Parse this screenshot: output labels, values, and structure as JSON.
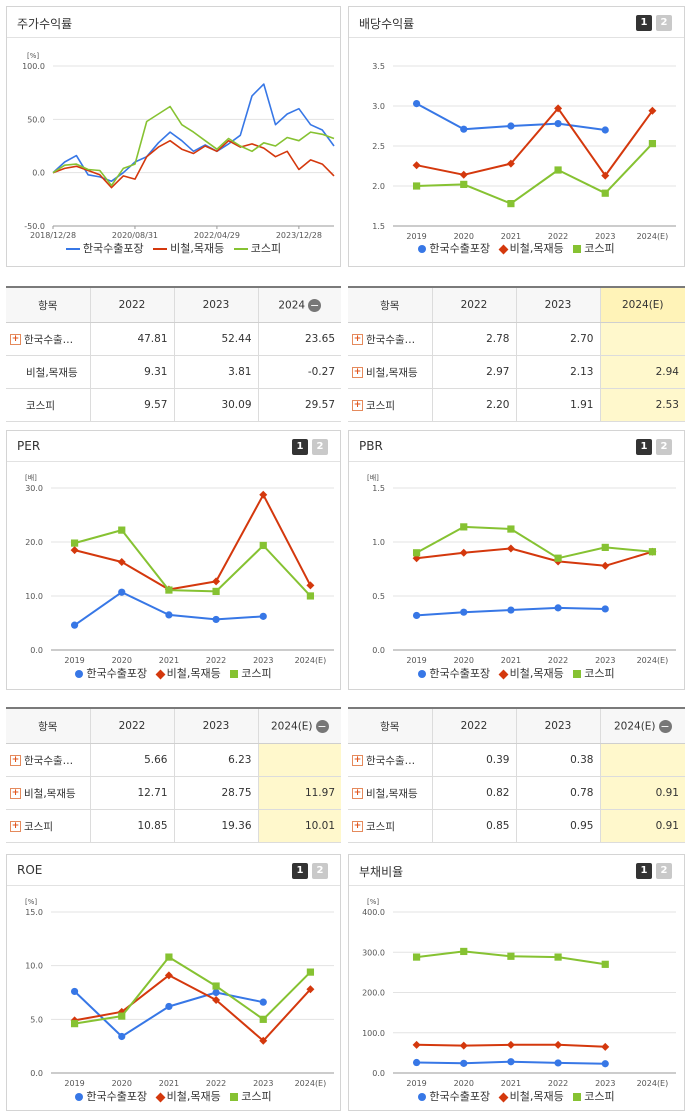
{
  "colors": {
    "s1": "#3777e6",
    "s2": "#d4380d",
    "s3": "#86c232"
  },
  "charts": {
    "stock": {
      "title": "주가수익률",
      "unit": "[%]",
      "legend": [
        "한국수출포장",
        "비철,목재등",
        "코스피"
      ],
      "ylim": [
        -50,
        100
      ],
      "yticks": [
        "100.0",
        "50.0",
        "0.0",
        "-50.0"
      ],
      "xticks": [
        "2018/12/28",
        "2020/08/31",
        "2022/04/29",
        "2023/12/28"
      ]
    },
    "div": {
      "title": "배당수익률",
      "page": [
        "1",
        "2"
      ],
      "unit": "",
      "legend": [
        "한국수출포장",
        "비철,목재등",
        "코스피"
      ],
      "yticks": [
        "3.5",
        "3.0",
        "2.5",
        "2.0",
        "1.5"
      ],
      "xticks": [
        "2019",
        "2020",
        "2021",
        "2022",
        "2023",
        "2024(E)"
      ]
    },
    "per": {
      "title": "PER",
      "page": [
        "1",
        "2"
      ],
      "unit": "[배]",
      "legend": [
        "한국수출포장",
        "비철,목재등",
        "코스피"
      ],
      "yticks": [
        "30.0",
        "20.0",
        "10.0",
        "0.0"
      ],
      "xticks": [
        "2019",
        "2020",
        "2021",
        "2022",
        "2023",
        "2024(E)"
      ]
    },
    "pbr": {
      "title": "PBR",
      "page": [
        "1",
        "2"
      ],
      "unit": "[배]",
      "legend": [
        "한국수출포장",
        "비철,목재등",
        "코스피"
      ],
      "yticks": [
        "1.5",
        "1.0",
        "0.5",
        "0.0"
      ],
      "xticks": [
        "2019",
        "2020",
        "2021",
        "2022",
        "2023",
        "2024(E)"
      ]
    },
    "roe": {
      "title": "ROE",
      "page": [
        "1",
        "2"
      ],
      "unit": "[%]",
      "legend": [
        "한국수출포장",
        "비철,목재등",
        "코스피"
      ],
      "yticks": [
        "15.0",
        "10.0",
        "5.0",
        "0.0"
      ],
      "xticks": [
        "2019",
        "2020",
        "2021",
        "2022",
        "2023",
        "2024(E)"
      ]
    },
    "debt": {
      "title": "부채비율",
      "page": [
        "1",
        "2"
      ],
      "unit": "[%]",
      "legend": [
        "한국수출포장",
        "비철,목재등",
        "코스피"
      ],
      "yticks": [
        "400.0",
        "300.0",
        "200.0",
        "100.0",
        "0.0"
      ],
      "xticks": [
        "2019",
        "2020",
        "2021",
        "2022",
        "2023",
        "2024(E)"
      ]
    }
  },
  "chart_data": [
    {
      "type": "line",
      "title": "주가수익률",
      "ylabel": "[%]",
      "ylim": [
        -50,
        100
      ],
      "x": [
        "2018/12/28",
        "2019/03",
        "2019/06",
        "2019/09",
        "2019/12",
        "2020/03",
        "2020/06",
        "2020/08/31",
        "2020/11",
        "2021/02",
        "2021/05",
        "2021/08",
        "2021/11",
        "2022/02",
        "2022/04/29",
        "2022/07",
        "2022/10",
        "2023/01",
        "2023/04",
        "2023/07",
        "2023/10",
        "2023/12/28",
        "2024/03",
        "2024/06",
        "2024/08"
      ],
      "series": [
        {
          "name": "한국수출포장",
          "values": [
            0,
            10,
            16,
            -2,
            -4,
            -8,
            0,
            10,
            15,
            28,
            38,
            30,
            20,
            26,
            20,
            27,
            35,
            72,
            83,
            45,
            55,
            60,
            45,
            40,
            25
          ]
        },
        {
          "name": "비철,목재등",
          "values": [
            0,
            4,
            6,
            2,
            -2,
            -14,
            -3,
            -6,
            15,
            24,
            30,
            22,
            18,
            25,
            20,
            30,
            24,
            27,
            23,
            15,
            20,
            3,
            12,
            8,
            -3
          ]
        },
        {
          "name": "코스피",
          "values": [
            0,
            7,
            8,
            3,
            2,
            -12,
            4,
            8,
            48,
            55,
            62,
            45,
            38,
            30,
            22,
            32,
            25,
            20,
            28,
            25,
            33,
            30,
            38,
            36,
            32
          ]
        }
      ]
    },
    {
      "type": "line",
      "title": "배당수익률",
      "x": [
        "2019",
        "2020",
        "2021",
        "2022",
        "2023",
        "2024(E)"
      ],
      "ylim": [
        1.5,
        3.5
      ],
      "series": [
        {
          "name": "한국수출포장",
          "values": [
            3.03,
            2.71,
            2.75,
            2.78,
            2.7,
            null
          ]
        },
        {
          "name": "비철,목재등",
          "values": [
            2.26,
            2.14,
            2.28,
            2.97,
            2.13,
            2.94
          ]
        },
        {
          "name": "코스피",
          "values": [
            2.0,
            2.02,
            1.78,
            2.2,
            1.91,
            2.53
          ]
        }
      ]
    },
    {
      "type": "line",
      "title": "PER",
      "ylabel": "[배]",
      "x": [
        "2019",
        "2020",
        "2021",
        "2022",
        "2023",
        "2024(E)"
      ],
      "ylim": [
        0,
        30
      ],
      "series": [
        {
          "name": "한국수출포장",
          "values": [
            4.6,
            10.7,
            6.5,
            5.66,
            6.23,
            null
          ]
        },
        {
          "name": "비철,목재등",
          "values": [
            18.5,
            16.3,
            11.2,
            12.71,
            28.75,
            11.97
          ]
        },
        {
          "name": "코스피",
          "values": [
            19.8,
            22.2,
            11.1,
            10.85,
            19.36,
            10.01
          ]
        }
      ]
    },
    {
      "type": "line",
      "title": "PBR",
      "ylabel": "[배]",
      "x": [
        "2019",
        "2020",
        "2021",
        "2022",
        "2023",
        "2024(E)"
      ],
      "ylim": [
        0,
        1.5
      ],
      "series": [
        {
          "name": "한국수출포장",
          "values": [
            0.32,
            0.35,
            0.37,
            0.39,
            0.38,
            null
          ]
        },
        {
          "name": "비철,목재등",
          "values": [
            0.85,
            0.9,
            0.94,
            0.82,
            0.78,
            0.91
          ]
        },
        {
          "name": "코스피",
          "values": [
            0.9,
            1.14,
            1.12,
            0.85,
            0.95,
            0.91
          ]
        }
      ]
    },
    {
      "type": "line",
      "title": "ROE",
      "ylabel": "[%]",
      "x": [
        "2019",
        "2020",
        "2021",
        "2022",
        "2023",
        "2024(E)"
      ],
      "ylim": [
        0,
        15
      ],
      "series": [
        {
          "name": "한국수출포장",
          "values": [
            7.6,
            3.4,
            6.2,
            7.5,
            6.6,
            null
          ]
        },
        {
          "name": "비철,목재등",
          "values": [
            4.9,
            5.7,
            9.1,
            6.8,
            3.0,
            7.8
          ]
        },
        {
          "name": "코스피",
          "values": [
            4.6,
            5.3,
            10.8,
            8.1,
            5.0,
            9.4
          ]
        }
      ]
    },
    {
      "type": "line",
      "title": "부채비율",
      "ylabel": "[%]",
      "x": [
        "2019",
        "2020",
        "2021",
        "2022",
        "2023",
        "2024(E)"
      ],
      "ylim": [
        0,
        400
      ],
      "series": [
        {
          "name": "한국수출포장",
          "values": [
            26,
            24,
            28,
            25,
            23,
            null
          ]
        },
        {
          "name": "비철,목재등",
          "values": [
            70,
            68,
            70,
            70,
            65,
            null
          ]
        },
        {
          "name": "코스피",
          "values": [
            288,
            302,
            290,
            288,
            270,
            null
          ]
        }
      ]
    }
  ],
  "tables": {
    "stock": {
      "header": [
        "항목",
        "2022",
        "2023",
        "2024"
      ],
      "rows": [
        [
          "한국수출…",
          "47.81",
          "52.44",
          "23.65"
        ],
        [
          "비철,목재등",
          "9.31",
          "3.81",
          "-0.27"
        ],
        [
          "코스피",
          "9.57",
          "30.09",
          "29.57"
        ]
      ],
      "plus": [
        true,
        false,
        false
      ]
    },
    "div": {
      "header": [
        "항목",
        "2022",
        "2023",
        "2024(E)"
      ],
      "rows": [
        [
          "한국수출…",
          "2.78",
          "2.70",
          ""
        ],
        [
          "비철,목재등",
          "2.97",
          "2.13",
          "2.94"
        ],
        [
          "코스피",
          "2.20",
          "1.91",
          "2.53"
        ]
      ],
      "plus": [
        true,
        true,
        true
      ]
    },
    "per": {
      "header": [
        "항목",
        "2022",
        "2023",
        "2024(E)"
      ],
      "rows": [
        [
          "한국수출…",
          "5.66",
          "6.23",
          ""
        ],
        [
          "비철,목재등",
          "12.71",
          "28.75",
          "11.97"
        ],
        [
          "코스피",
          "10.85",
          "19.36",
          "10.01"
        ]
      ],
      "plus": [
        true,
        true,
        true
      ]
    },
    "pbr": {
      "header": [
        "항목",
        "2022",
        "2023",
        "2024(E)"
      ],
      "rows": [
        [
          "한국수출…",
          "0.39",
          "0.38",
          ""
        ],
        [
          "비철,목재등",
          "0.82",
          "0.78",
          "0.91"
        ],
        [
          "코스피",
          "0.85",
          "0.95",
          "0.91"
        ]
      ],
      "plus": [
        true,
        true,
        true
      ]
    }
  }
}
